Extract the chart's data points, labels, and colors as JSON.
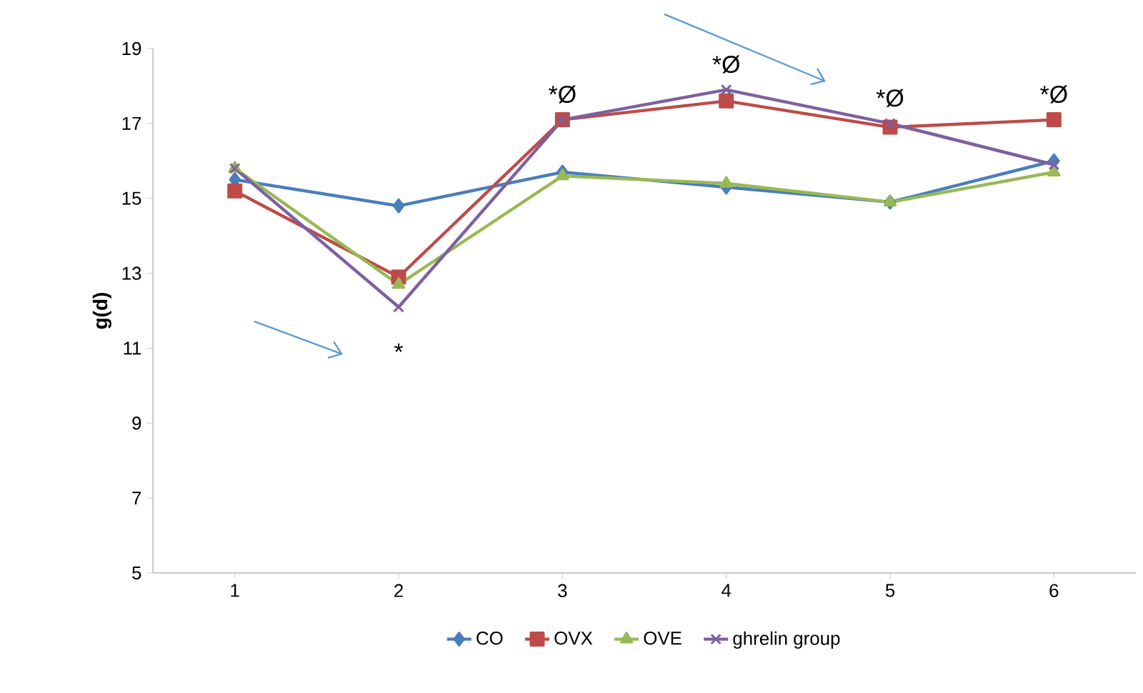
{
  "chart_data": {
    "type": "line",
    "ylabel": "g(d)",
    "categories": [
      "1",
      "2",
      "3",
      "4",
      "5",
      "6"
    ],
    "series": [
      {
        "name": "CO",
        "color": "#4a7ebb",
        "marker": "diamond",
        "values": [
          15.5,
          14.8,
          15.7,
          15.3,
          14.9,
          16.0
        ]
      },
      {
        "name": "OVX",
        "color": "#be4b48",
        "marker": "square",
        "values": [
          15.2,
          12.9,
          17.1,
          17.6,
          16.9,
          17.1
        ]
      },
      {
        "name": "OVE",
        "color": "#98b954",
        "marker": "triangle",
        "values": [
          15.8,
          12.7,
          15.6,
          15.4,
          14.9,
          15.7
        ]
      },
      {
        "name": "ghrelin group",
        "color": "#7d60a0",
        "marker": "cross",
        "values": [
          15.8,
          12.1,
          17.1,
          17.9,
          17.0,
          15.9
        ]
      }
    ],
    "ylim": [
      5,
      19
    ],
    "yticks": [
      5,
      7,
      9,
      11,
      13,
      15,
      17,
      19
    ],
    "legend": "bottom",
    "annotations": [
      {
        "text": "*",
        "x": "2",
        "y": 12.1
      },
      {
        "text": "*Ø",
        "x": "3",
        "y": 17.1
      },
      {
        "text": "*Ø",
        "x": "4",
        "y": 17.9
      },
      {
        "text": "*Ø",
        "x": "5",
        "y": 17.0
      },
      {
        "text": "*Ø",
        "x": "6",
        "y": 17.1
      }
    ]
  }
}
